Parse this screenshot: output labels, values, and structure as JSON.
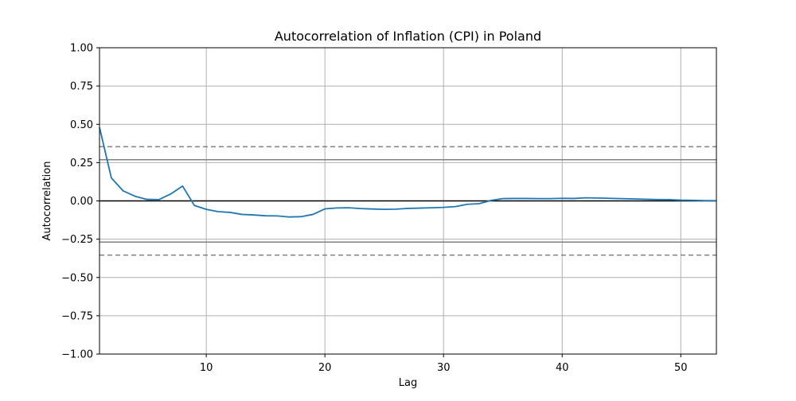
{
  "chart_data": {
    "type": "line",
    "title": "Autocorrelation of Inflation (CPI) in Poland",
    "xlabel": "Lag",
    "ylabel": "Autocorrelation",
    "xlim": [
      1,
      53
    ],
    "ylim": [
      -1.0,
      1.0
    ],
    "x_ticks": [
      10,
      20,
      30,
      40,
      50
    ],
    "x_tick_labels": [
      "10",
      "20",
      "30",
      "40",
      "50"
    ],
    "y_ticks": [
      -1.0,
      -0.75,
      -0.5,
      -0.25,
      0.0,
      0.25,
      0.5,
      0.75,
      1.0
    ],
    "y_tick_labels": [
      "−1.00",
      "−0.75",
      "−0.50",
      "−0.25",
      "0.00",
      "0.25",
      "0.50",
      "0.75",
      "1.00"
    ],
    "grid": true,
    "confidence_bands": {
      "z95": 0.269,
      "z99": 0.354
    },
    "series": [
      {
        "color": "#1f77b4",
        "x": [
          1,
          2,
          3,
          4,
          5,
          6,
          7,
          8,
          9,
          10,
          11,
          12,
          13,
          14,
          15,
          16,
          17,
          18,
          19,
          20,
          21,
          22,
          23,
          24,
          25,
          26,
          27,
          28,
          29,
          30,
          31,
          32,
          33,
          34,
          35,
          36,
          37,
          38,
          39,
          40,
          41,
          42,
          43,
          44,
          45,
          46,
          47,
          48,
          49,
          50,
          51,
          52,
          53
        ],
        "values": [
          0.48,
          0.15,
          0.065,
          0.03,
          0.01,
          0.008,
          0.045,
          0.097,
          -0.03,
          -0.055,
          -0.07,
          -0.075,
          -0.088,
          -0.092,
          -0.097,
          -0.098,
          -0.105,
          -0.103,
          -0.088,
          -0.052,
          -0.046,
          -0.045,
          -0.05,
          -0.053,
          -0.055,
          -0.054,
          -0.049,
          -0.047,
          -0.045,
          -0.042,
          -0.037,
          -0.022,
          -0.018,
          0.003,
          0.015,
          0.016,
          0.016,
          0.015,
          0.015,
          0.017,
          0.016,
          0.02,
          0.019,
          0.017,
          0.015,
          0.013,
          0.011,
          0.009,
          0.008,
          0.005,
          0.004,
          0.002,
          0.001
        ]
      }
    ]
  }
}
